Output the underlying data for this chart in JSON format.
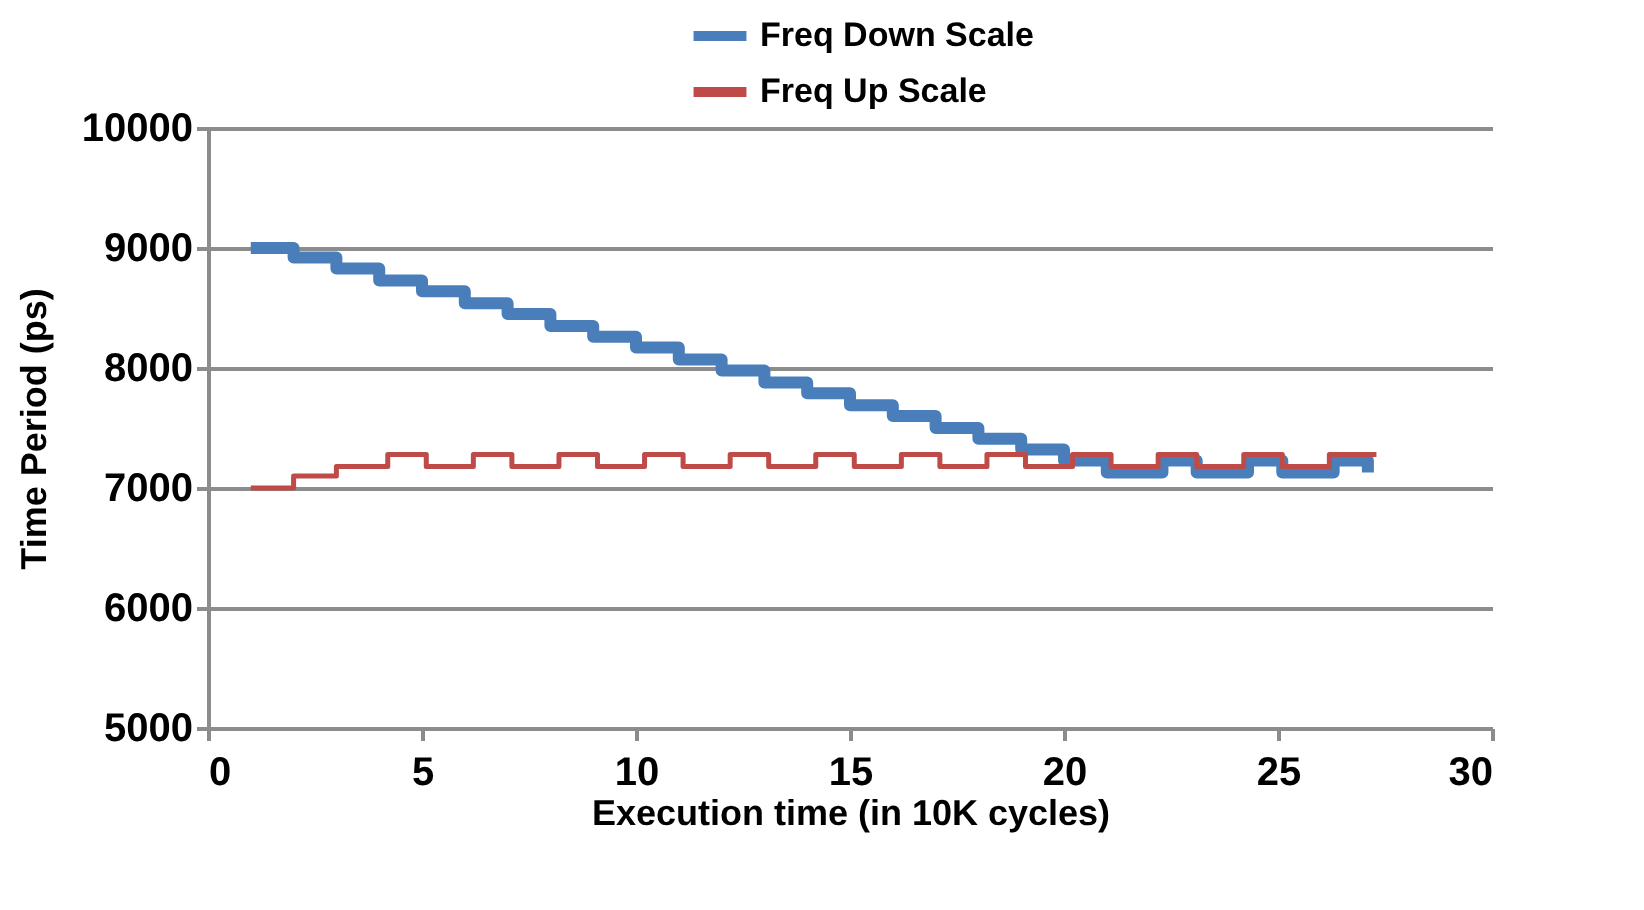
{
  "chart_data": {
    "type": "step",
    "xlabel": "Execution time (in 10K cycles)",
    "ylabel": "Time  Period  (ps)",
    "xlim": [
      0,
      30
    ],
    "xticks": [
      0,
      5,
      10,
      15,
      20,
      25,
      30
    ],
    "ylim": [
      5000,
      10000
    ],
    "yticks": [
      5000,
      6000,
      7000,
      8000,
      9000,
      10000
    ],
    "grid": "y",
    "legend": "top",
    "marker": "none",
    "series": [
      {
        "name": "Freq Down Scale",
        "color": "#4a7ebb",
        "x": [
          1,
          2,
          3,
          4,
          5,
          6,
          7,
          8,
          9,
          10,
          11,
          12,
          13,
          14,
          15,
          16,
          17,
          18,
          19,
          20,
          21,
          22.3,
          23.1,
          24.3,
          25.1,
          26.3,
          27.1
        ],
        "values": [
          9000,
          8920,
          8830,
          8730,
          8640,
          8540,
          8450,
          8350,
          8260,
          8170,
          8070,
          7980,
          7880,
          7790,
          7690,
          7600,
          7500,
          7410,
          7320,
          7230,
          7130,
          7230,
          7130,
          7230,
          7130,
          7230,
          7130
        ]
      },
      {
        "name": "Freq Up Scale",
        "color": "#be4b48",
        "x": [
          1,
          2,
          3,
          4.2,
          5.1,
          6.2,
          7.1,
          8.2,
          9.1,
          10.2,
          11.1,
          12.2,
          13.1,
          14.2,
          15.1,
          16.2,
          17.1,
          18.2,
          19.1,
          20.2,
          21.1,
          22.2,
          23.1,
          24.2,
          25.1,
          26.2,
          27.3
        ],
        "values": [
          7000,
          7100,
          7180,
          7280,
          7180,
          7280,
          7180,
          7280,
          7180,
          7280,
          7180,
          7280,
          7180,
          7280,
          7180,
          7280,
          7180,
          7280,
          7180,
          7280,
          7180,
          7280,
          7180,
          7280,
          7180,
          7280,
          7280
        ]
      }
    ]
  }
}
